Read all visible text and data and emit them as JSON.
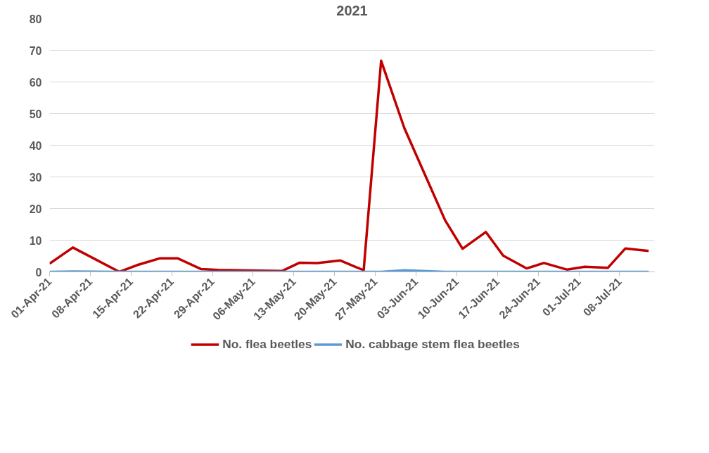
{
  "chart_data": {
    "type": "line",
    "title": "2021",
    "x": [
      "2021-04-01",
      "2021-04-05",
      "2021-04-13",
      "2021-04-16",
      "2021-04-20",
      "2021-04-23",
      "2021-04-27",
      "2021-04-30",
      "2021-05-07",
      "2021-05-11",
      "2021-05-14",
      "2021-05-17",
      "2021-05-21",
      "2021-05-25",
      "2021-05-28",
      "2021-06-01",
      "2021-06-08",
      "2021-06-11",
      "2021-06-15",
      "2021-06-18",
      "2021-06-22",
      "2021-06-25",
      "2021-06-29",
      "2021-07-02",
      "2021-07-06",
      "2021-07-09",
      "2021-07-13"
    ],
    "series": [
      {
        "name": "No. flea beetles",
        "color": "#c00000",
        "values": [
          2.6,
          7.7,
          0,
          2.1,
          4.3,
          4.3,
          0.9,
          0.6,
          0.4,
          0.3,
          2.9,
          2.8,
          3.6,
          0.5,
          66.7,
          45.4,
          16.3,
          7.3,
          12.6,
          5.1,
          1.1,
          2.8,
          0.7,
          1.6,
          1.3,
          7.4,
          6.6
        ]
      },
      {
        "name": "No. cabbage stem flea beetles",
        "color": "#5b9bd5",
        "values": [
          0,
          0.1,
          0,
          0,
          0,
          0,
          0,
          0,
          0,
          0,
          0,
          0,
          0,
          0,
          0,
          0.5,
          0,
          0,
          0,
          0,
          0,
          0,
          0,
          0,
          0,
          0,
          0
        ]
      }
    ],
    "xlim": [
      "2021-04-01",
      "2021-07-14"
    ],
    "xticks": [
      {
        "value": "2021-04-01",
        "label": "01-Apr-21"
      },
      {
        "value": "2021-04-08",
        "label": "08-Apr-21"
      },
      {
        "value": "2021-04-15",
        "label": "15-Apr-21"
      },
      {
        "value": "2021-04-22",
        "label": "22-Apr-21"
      },
      {
        "value": "2021-04-29",
        "label": "29-Apr-21"
      },
      {
        "value": "2021-05-06",
        "label": "06-May-21"
      },
      {
        "value": "2021-05-13",
        "label": "13-May-21"
      },
      {
        "value": "2021-05-20",
        "label": "20-May-21"
      },
      {
        "value": "2021-05-27",
        "label": "27-May-21"
      },
      {
        "value": "2021-06-03",
        "label": "03-Jun-21"
      },
      {
        "value": "2021-06-10",
        "label": "10-Jun-21"
      },
      {
        "value": "2021-06-17",
        "label": "17-Jun-21"
      },
      {
        "value": "2021-06-24",
        "label": "24-Jun-21"
      },
      {
        "value": "2021-07-01",
        "label": "01-Jul-21"
      },
      {
        "value": "2021-07-08",
        "label": "08-Jul-21"
      }
    ],
    "ylim": [
      0,
      80
    ],
    "yticks": [
      0,
      10,
      20,
      30,
      40,
      50,
      60,
      70,
      80
    ],
    "grid": "y",
    "legend": "bottom",
    "marker": "none",
    "line_style": "solid"
  }
}
